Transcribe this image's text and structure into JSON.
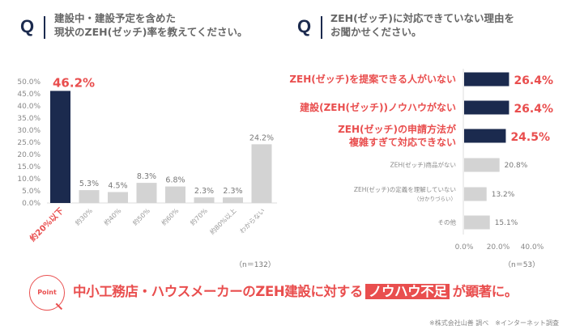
{
  "left": {
    "q": "Q",
    "question": [
      "建設中・建設予定を含めた",
      "現状のZEH(ゼッチ)率を教えてください。"
    ],
    "n": "（n＝132）"
  },
  "right": {
    "q": "Q",
    "question": [
      "ZEH(ゼッチ)に対応できていない理由を",
      "お聞かせください。"
    ],
    "n": "（n＝53）"
  },
  "chart_data": [
    {
      "type": "bar",
      "categories": [
        "約20%以下",
        "約30%",
        "約40%",
        "約50%",
        "約60%",
        "約70%",
        "約80%以上",
        "わからない"
      ],
      "values": [
        46.2,
        5.3,
        4.5,
        8.3,
        6.8,
        2.3,
        2.3,
        24.2
      ],
      "data_labels": [
        "46.2%",
        "5.3%",
        "4.5%",
        "8.3%",
        "6.8%",
        "2.3%",
        "2.3%",
        "24.2%"
      ],
      "ylim": [
        0,
        50
      ],
      "yticks": [
        "0.0%",
        "5.0%",
        "10.0%",
        "15.0%",
        "20.0%",
        "25.0%",
        "30.0%",
        "35.0%",
        "40.0%",
        "45.0%",
        "50.0%"
      ],
      "highlight": [
        0
      ],
      "colors": {
        "highlight": "#1b2a4e",
        "normal": "#d3d3d3",
        "accent": "#e94e4e"
      }
    },
    {
      "type": "bar",
      "orientation": "horizontal",
      "categories": [
        [
          "ZEH(ゼッチ)を提案できる人がいない"
        ],
        [
          "建設(ZEH(ゼッチ))ノウハウがない"
        ],
        [
          "ZEH(ゼッチ)の申請方法が",
          "複雑すぎて対応できない"
        ],
        [
          "ZEH(ゼッチ)商品がない"
        ],
        [
          "ZEH(ゼッチ)の定義を理解していない",
          "（分かりづらい）"
        ],
        [
          "その他"
        ]
      ],
      "values": [
        26.4,
        26.4,
        24.5,
        20.8,
        13.2,
        15.1
      ],
      "data_labels": [
        "26.4%",
        "26.4%",
        "24.5%",
        "20.8%",
        "13.2%",
        "15.1%"
      ],
      "xlim": [
        0,
        40
      ],
      "xticks": [
        "0.0%",
        "20.0%",
        "40.0%"
      ],
      "highlight": [
        0,
        1,
        2
      ],
      "colors": {
        "highlight": "#1b2a4e",
        "normal": "#d3d3d3",
        "accent": "#e94e4e"
      }
    }
  ],
  "point": {
    "badge": "Point",
    "before": "中小工務店・ハウスメーカーのZEH建設に対する",
    "highlight": "ノウハウ不足",
    "after": "が顕著に。"
  },
  "source": "※株式会社山善 調べ　※インターネット調査"
}
